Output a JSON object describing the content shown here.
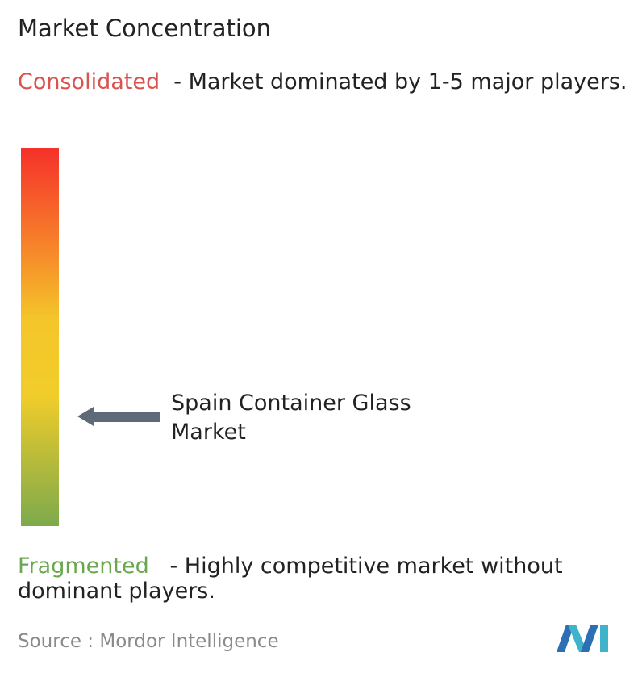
{
  "header": {
    "title": "Market Concentration"
  },
  "consolidated": {
    "label": "Consolidated",
    "description": "- Market dominated by 1-5 major players."
  },
  "marker": {
    "label": "Spain Container Glass Market"
  },
  "fragmented": {
    "label": "Fragmented",
    "description": "- Highly competitive market without dominant players."
  },
  "footer": {
    "source_label": "Source :",
    "source": "Mordor Intelligence"
  }
}
